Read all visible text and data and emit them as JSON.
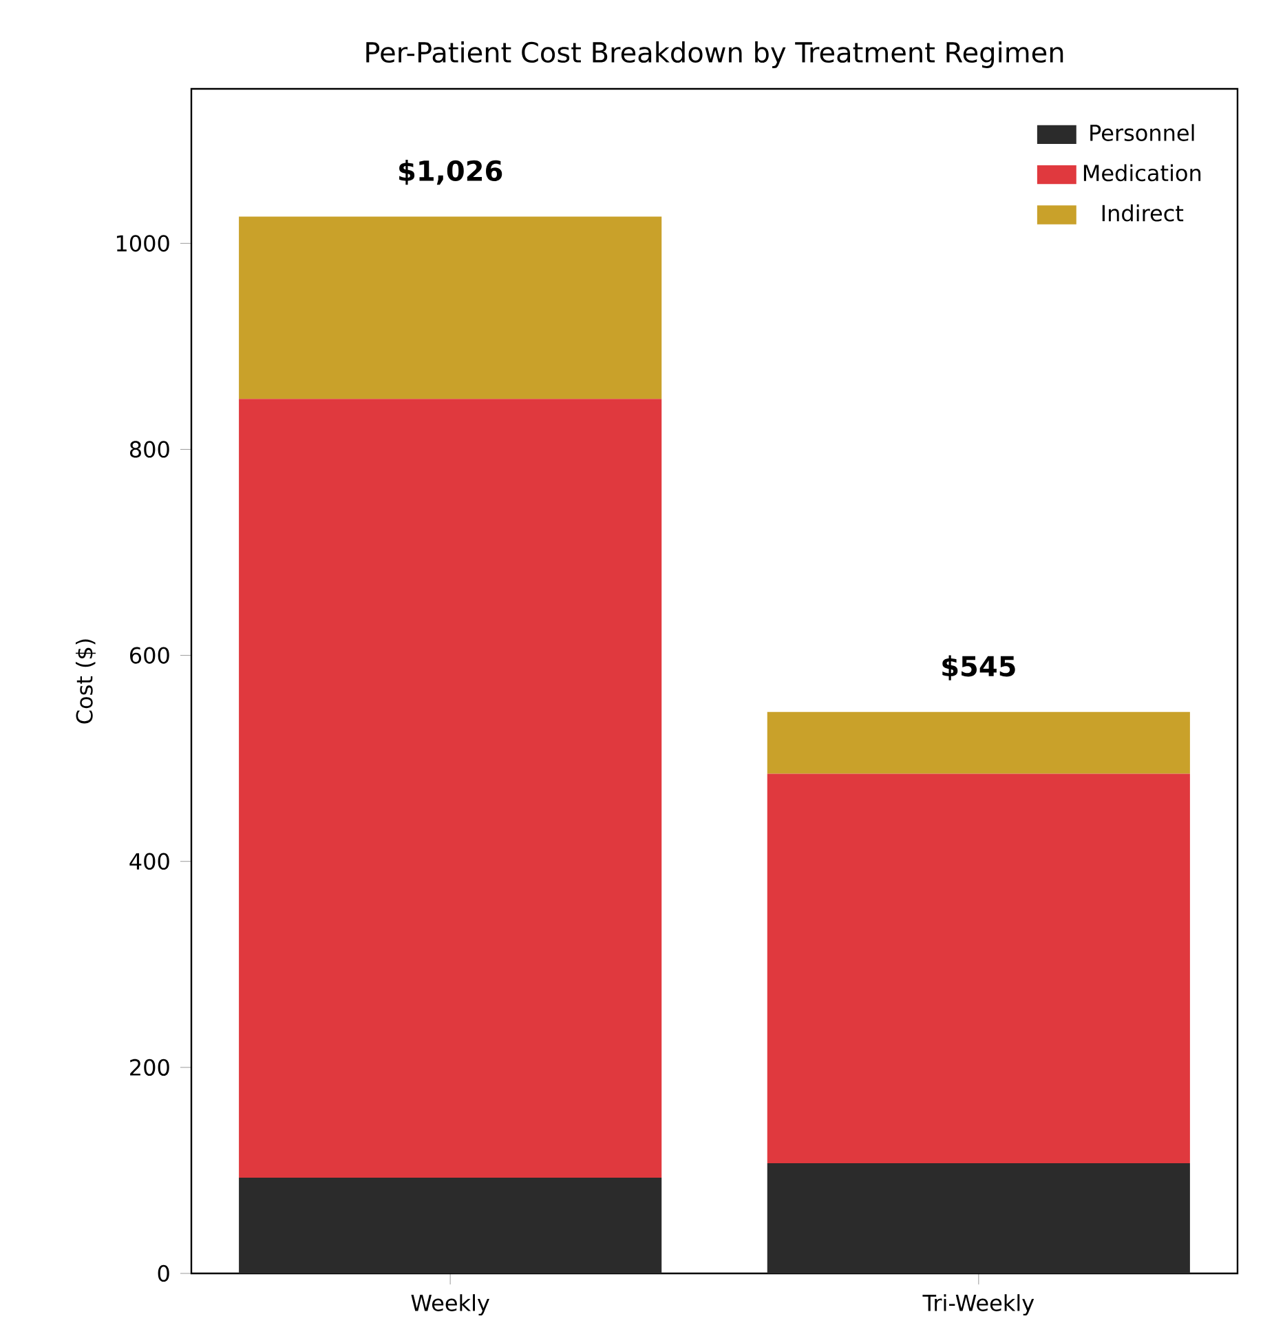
{
  "chart_data": {
    "type": "bar",
    "title": "Per-Patient Cost Breakdown by Treatment Regimen",
    "ylabel": "Cost ($)",
    "categories": [
      "Weekly",
      "Tri-Weekly"
    ],
    "series": [
      {
        "name": "Personnel",
        "color": "#2b2b2b",
        "values": [
          93,
          107
        ]
      },
      {
        "name": "Medication",
        "color": "#e0393e",
        "values": [
          756,
          378
        ]
      },
      {
        "name": "Indirect",
        "color": "#c9a12a",
        "values": [
          177,
          60
        ]
      }
    ],
    "stacked": true,
    "totals": [
      "$1,026",
      "$545"
    ],
    "ylim": [
      0,
      1150
    ],
    "yticks": [
      0,
      200,
      400,
      600,
      800,
      1000
    ],
    "legend": "top right",
    "grid": false
  }
}
